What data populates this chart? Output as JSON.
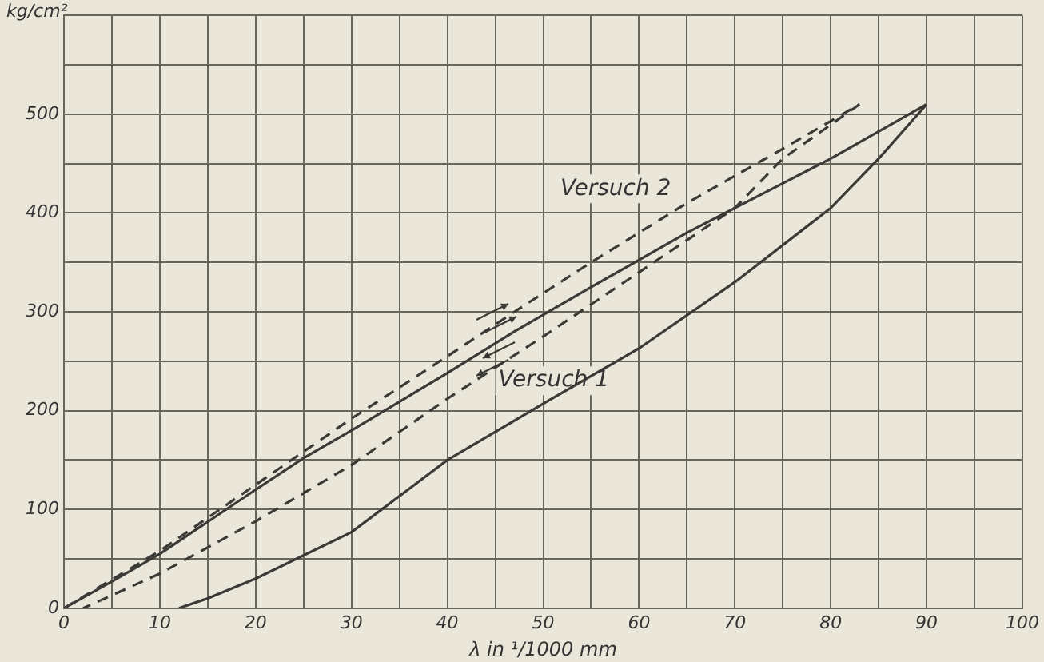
{
  "chart_data": {
    "type": "line",
    "xlabel": "λ in ¹/1000 mm",
    "ylabel": "kg/cm²",
    "xlim": [
      0,
      100
    ],
    "ylim": [
      0,
      600
    ],
    "xticks": [
      0,
      {
        "value": 5,
        "label": null
      },
      10,
      {
        "value": 15,
        "label": null
      },
      20,
      {
        "value": 25,
        "label": null
      },
      30,
      {
        "value": 35,
        "label": null
      },
      40,
      {
        "value": 45,
        "label": null
      },
      50,
      {
        "value": 55,
        "label": null
      },
      60,
      {
        "value": 65,
        "label": null
      },
      70,
      {
        "value": 75,
        "label": null
      },
      80,
      {
        "value": 85,
        "label": null
      },
      90,
      {
        "value": 95,
        "label": null
      },
      100
    ],
    "yticks": [
      0,
      {
        "value": 50,
        "label": null
      },
      100,
      {
        "value": 150,
        "label": null
      },
      200,
      {
        "value": 250,
        "label": null
      },
      300,
      {
        "value": 350,
        "label": null
      },
      400,
      {
        "value": 450,
        "label": null
      },
      500,
      {
        "value": 550,
        "label": null
      },
      {
        "value": 600,
        "label": null
      }
    ],
    "grid": true,
    "legend": false,
    "series": [
      {
        "color": "#3a3a36",
        "line_style": "solid",
        "x": [
          0,
          5,
          10,
          20,
          25,
          30,
          40,
          47,
          55,
          65,
          75,
          80,
          90
        ],
        "values": [
          0,
          27,
          55,
          120,
          152,
          180,
          238,
          280,
          325,
          380,
          430,
          455,
          510
        ]
      },
      {
        "color": "#3a3a36",
        "line_style": "solid",
        "x": [
          90,
          85,
          80,
          70,
          60,
          50,
          40,
          30,
          20,
          15,
          12
        ],
        "values": [
          510,
          455,
          405,
          330,
          263,
          207,
          150,
          77,
          30,
          10,
          0
        ]
      },
      {
        "color": "#3a3a36",
        "line_style": "dashed",
        "x": [
          0,
          10,
          20,
          30,
          40,
          47,
          55,
          65,
          75,
          83
        ],
        "values": [
          0,
          58,
          125,
          192,
          255,
          300,
          350,
          410,
          465,
          510
        ]
      },
      {
        "color": "#3a3a36",
        "line_style": "dashed",
        "x": [
          83,
          75,
          70,
          60,
          50,
          40,
          30,
          20,
          10,
          2
        ],
        "values": [
          510,
          455,
          405,
          340,
          275,
          212,
          145,
          88,
          35,
          0
        ]
      }
    ],
    "annotations": [
      {
        "text": "Versuch 2",
        "x": 64,
        "y": 405
      },
      {
        "text": "Versuch 1",
        "x": 44,
        "y": 240
      }
    ]
  }
}
